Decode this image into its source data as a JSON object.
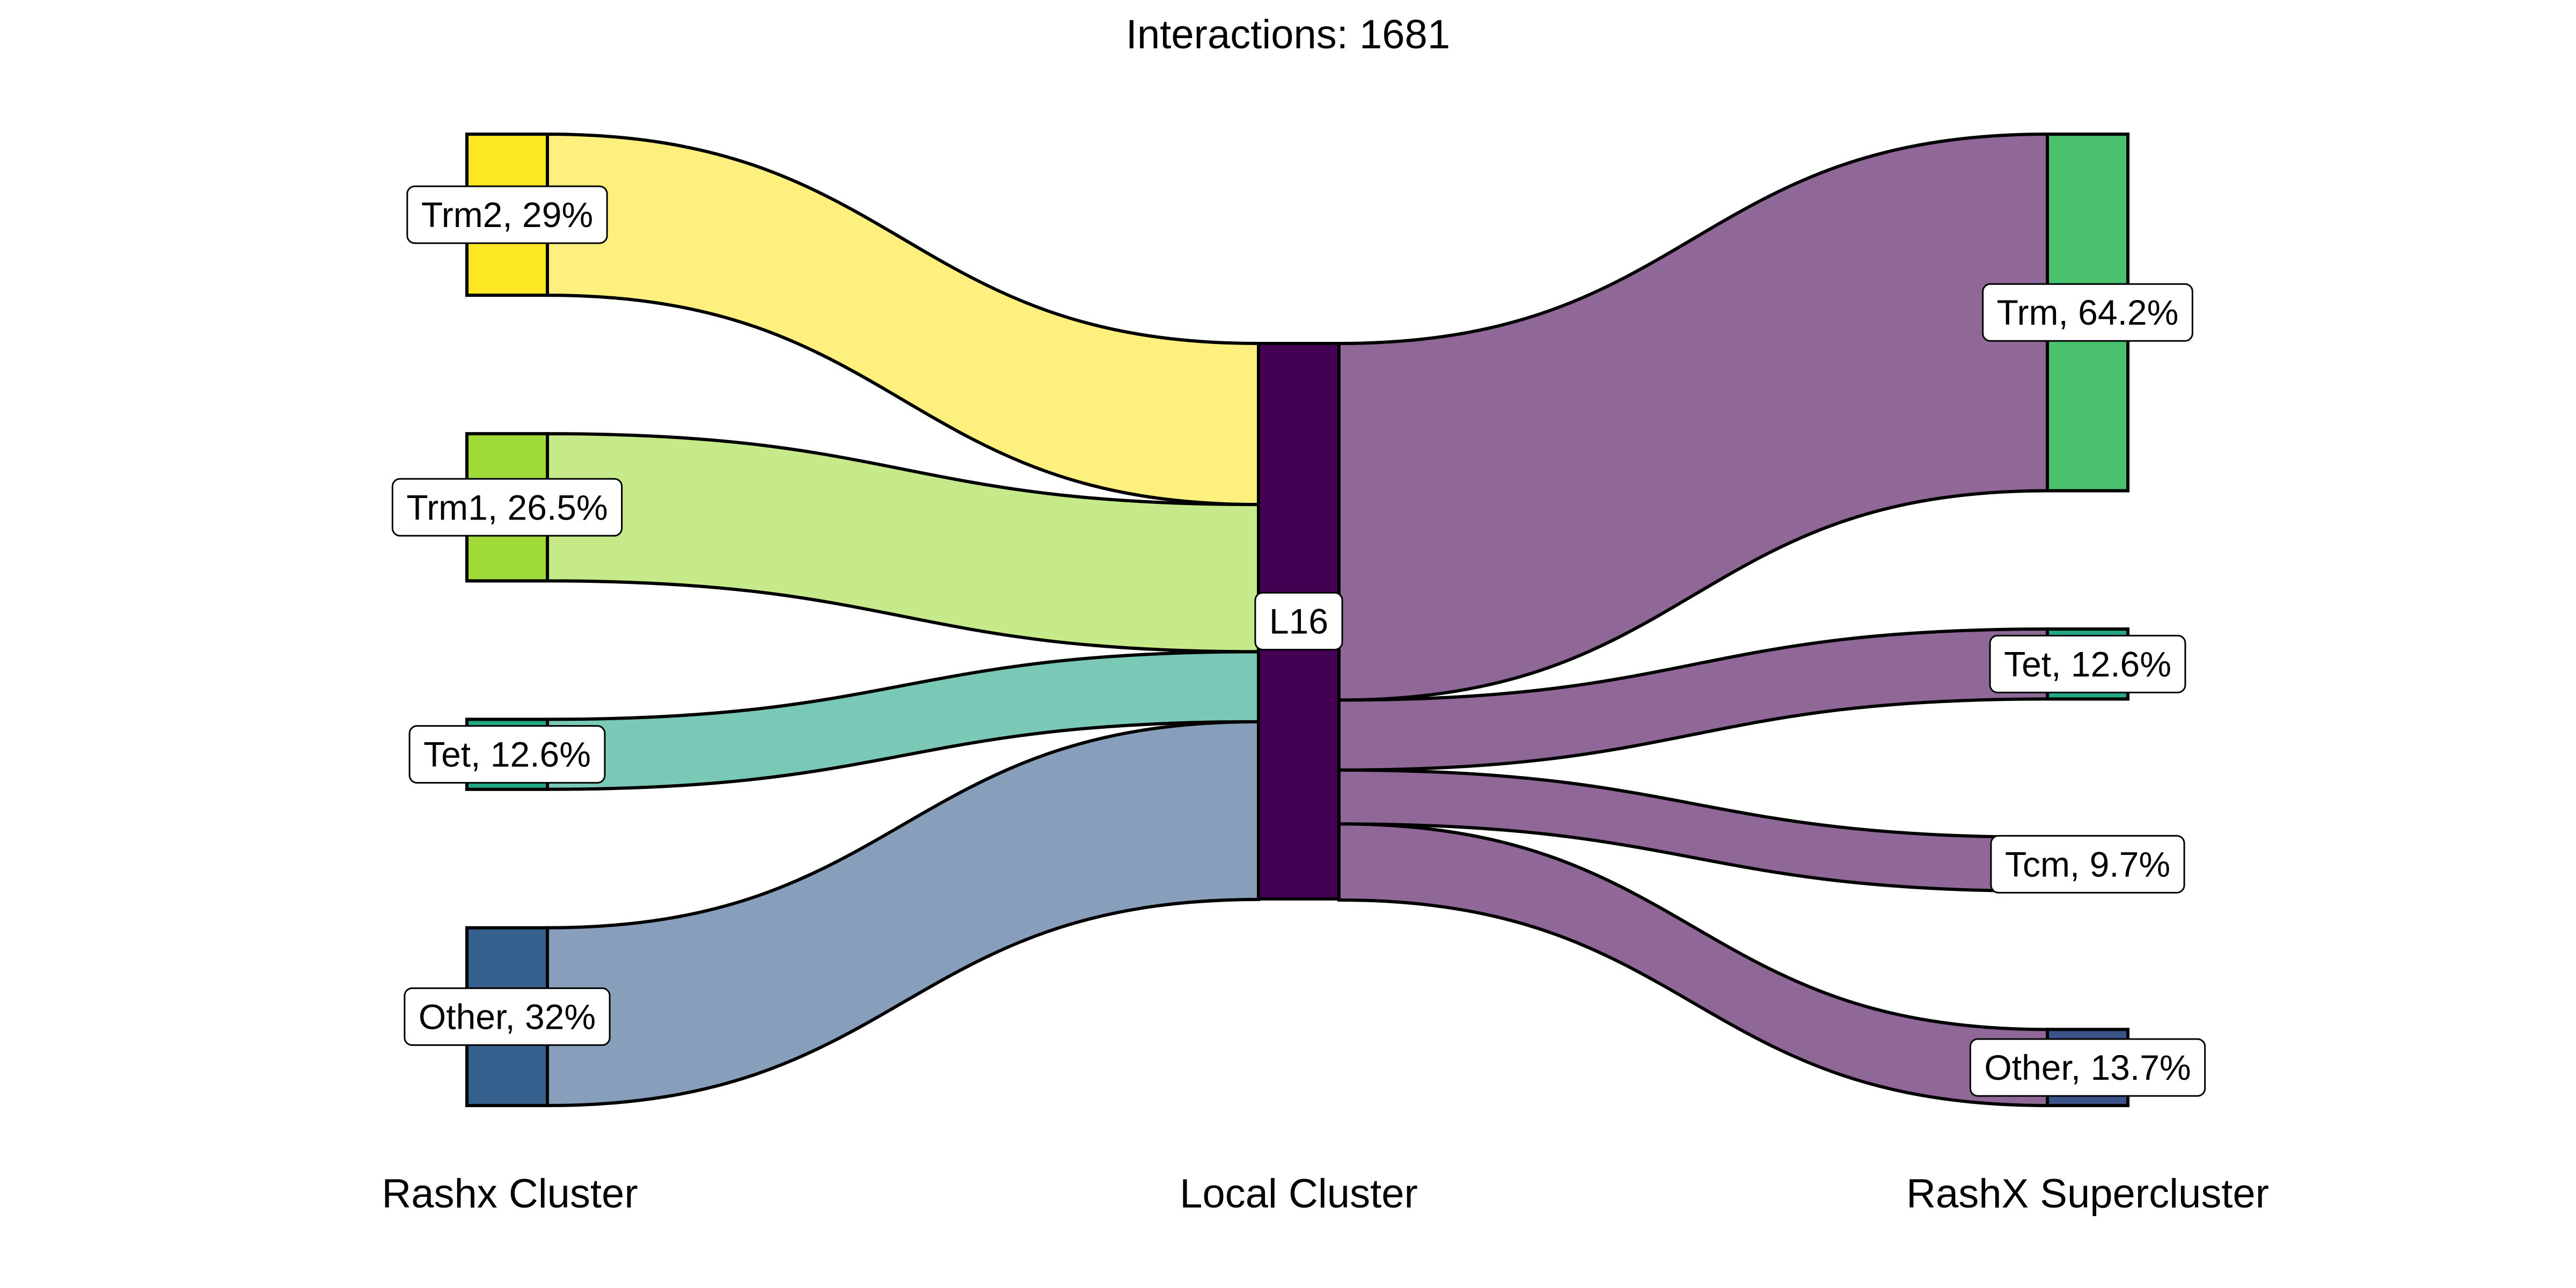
{
  "title": "Interactions: 1681",
  "axes": [
    {
      "key": "rashx",
      "label": "Rashx Cluster"
    },
    {
      "key": "local",
      "label": "Local Cluster"
    },
    {
      "key": "super",
      "label": "RashX Supercluster"
    }
  ],
  "left_nodes": [
    {
      "key": "trm2",
      "label": "Trm2, 29%",
      "percent": 29.0,
      "color": "#FDE725"
    },
    {
      "key": "trm1",
      "label": "Trm1, 26.5%",
      "percent": 26.5,
      "color": "#A0DA39"
    },
    {
      "key": "tet",
      "label": "Tet, 12.6%",
      "percent": 12.6,
      "color": "#22A884"
    },
    {
      "key": "other",
      "label": "Other, 32%",
      "percent": 32.0,
      "color": "#355F8D"
    }
  ],
  "middle_node": {
    "key": "l16",
    "label": "L16",
    "percent": 100,
    "color": "#440154"
  },
  "right_nodes": [
    {
      "key": "trm",
      "label": "Trm, 64.2%",
      "percent": 64.2,
      "color": "#4AC16D"
    },
    {
      "key": "tet",
      "label": "Tet, 12.6%",
      "percent": 12.6,
      "color": "#22A884"
    },
    {
      "key": "tcm",
      "label": "Tcm, 9.7%",
      "percent": 9.7,
      "color": "#1F9E89"
    },
    {
      "key": "other",
      "label": "Other, 13.7%",
      "percent": 13.7,
      "color": "#3B528B"
    }
  ],
  "left_flow_colors": [
    "#FDF07E",
    "#C6E98A",
    "#7AC8B6",
    "#889FBB"
  ],
  "right_flow_color": "#8F6898",
  "stroke_color": "#000000"
}
